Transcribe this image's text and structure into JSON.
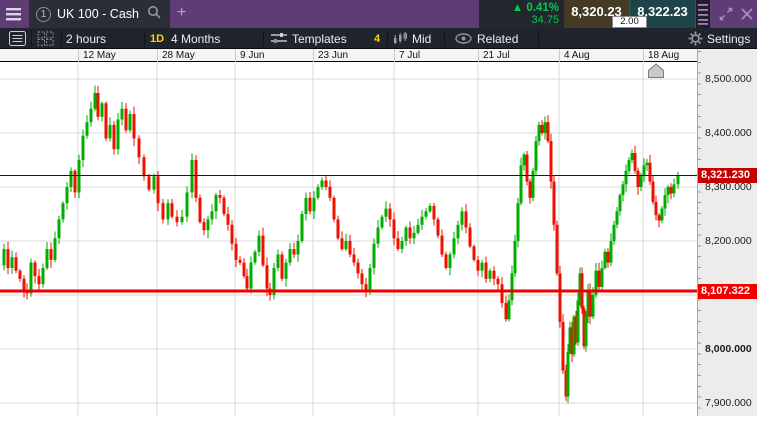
{
  "topbar": {
    "tab_badge": "1",
    "tab_title": "UK 100 - Cash",
    "add_tab": "+",
    "change": {
      "arrow": "▲",
      "percent": "0.41%",
      "points": "34.75",
      "color": "#00cb4e"
    },
    "sell_price": "8,320.23",
    "buy_price": "8,322.23",
    "spread": "2.00"
  },
  "toolbar": {
    "interval_label": "2 hours",
    "timeframe_badge": "1D",
    "period_label": "4 Months",
    "templates_label": "Templates",
    "templates_count": "4",
    "chart_type_label": "Mid",
    "related_label": "Related",
    "settings_label": "Settings",
    "accent_yellow": "#ffd400"
  },
  "chart_data": {
    "type": "candlestick",
    "title": "UK 100 - Cash, 2-hour candles over 4 months",
    "colors": {
      "up": "#00ae00",
      "down": "#ee1100",
      "grid": "#d8d8d8"
    },
    "x_axis": {
      "labels": [
        "12 May",
        "28 May",
        "9 Jun",
        "23 Jun",
        "7 Jul",
        "21 Jul",
        "4 Aug",
        "18 Aug"
      ],
      "tick_x": [
        78,
        157,
        235,
        313,
        394,
        478,
        559,
        643
      ]
    },
    "y_axis": {
      "min": 7880,
      "max": 8530,
      "labels": [
        {
          "text": "8,500.000",
          "value": 8500,
          "bold": false
        },
        {
          "text": "8,400.000",
          "value": 8400,
          "bold": false
        },
        {
          "text": "8,300.000",
          "value": 8300,
          "bold": false
        },
        {
          "text": "8,200.000",
          "value": 8200,
          "bold": false
        },
        {
          "text": "8,100.000",
          "value": 8100,
          "bold": false
        },
        {
          "text": "8,000.000",
          "value": 8000,
          "bold": true
        },
        {
          "text": "7,900.000",
          "value": 7900,
          "bold": false
        }
      ]
    },
    "levels": [
      {
        "name": "current-price",
        "value": 8321.23,
        "label": "8,321.230",
        "line_color": "#1a1a1a",
        "line_width": 1,
        "tag_color": "#c40000"
      },
      {
        "name": "alert-line",
        "value": 8107.322,
        "label": "8,107.322",
        "line_color": "#ee0000",
        "line_width": 3,
        "tag_color": "#f20000"
      }
    ],
    "price_path": [
      [
        0,
        8155
      ],
      [
        4,
        8185
      ],
      [
        8,
        8150
      ],
      [
        12,
        8170
      ],
      [
        16,
        8145
      ],
      [
        20,
        8130
      ],
      [
        24,
        8110
      ],
      [
        27,
        8103
      ],
      [
        31,
        8160
      ],
      [
        35,
        8135
      ],
      [
        39,
        8120
      ],
      [
        43,
        8150
      ],
      [
        47,
        8185
      ],
      [
        51,
        8165
      ],
      [
        55,
        8205
      ],
      [
        59,
        8240
      ],
      [
        63,
        8270
      ],
      [
        67,
        8300
      ],
      [
        71,
        8330
      ],
      [
        75,
        8290
      ],
      [
        79,
        8350
      ],
      [
        83,
        8395
      ],
      [
        87,
        8420
      ],
      [
        91,
        8445
      ],
      [
        95,
        8474
      ],
      [
        98,
        8430
      ],
      [
        102,
        8455
      ],
      [
        106,
        8390
      ],
      [
        110,
        8415
      ],
      [
        114,
        8370
      ],
      [
        118,
        8425
      ],
      [
        122,
        8445
      ],
      [
        126,
        8405
      ],
      [
        130,
        8435
      ],
      [
        134,
        8390
      ],
      [
        139,
        8355
      ],
      [
        144,
        8320
      ],
      [
        149,
        8295
      ],
      [
        154,
        8320
      ],
      [
        158,
        8270
      ],
      [
        163,
        8240
      ],
      [
        168,
        8270
      ],
      [
        172,
        8245
      ],
      [
        177,
        8235
      ],
      [
        182,
        8245
      ],
      [
        187,
        8290
      ],
      [
        192,
        8350
      ],
      [
        196,
        8280
      ],
      [
        200,
        8235
      ],
      [
        204,
        8220
      ],
      [
        208,
        8240
      ],
      [
        212,
        8255
      ],
      [
        216,
        8285
      ],
      [
        220,
        8280
      ],
      [
        224,
        8250
      ],
      [
        228,
        8230
      ],
      [
        232,
        8195
      ],
      [
        236,
        8165
      ],
      [
        240,
        8160
      ],
      [
        244,
        8135
      ],
      [
        247,
        8112
      ],
      [
        251,
        8160
      ],
      [
        255,
        8180
      ],
      [
        259,
        8210
      ],
      [
        263,
        8155
      ],
      [
        267,
        8112
      ],
      [
        270,
        8100
      ],
      [
        274,
        8150
      ],
      [
        278,
        8175
      ],
      [
        282,
        8130
      ],
      [
        286,
        8160
      ],
      [
        290,
        8185
      ],
      [
        294,
        8175
      ],
      [
        298,
        8200
      ],
      [
        302,
        8250
      ],
      [
        306,
        8280
      ],
      [
        310,
        8255
      ],
      [
        314,
        8280
      ],
      [
        318,
        8300
      ],
      [
        322,
        8312
      ],
      [
        326,
        8300
      ],
      [
        330,
        8280
      ],
      [
        334,
        8240
      ],
      [
        338,
        8205
      ],
      [
        342,
        8185
      ],
      [
        346,
        8200
      ],
      [
        350,
        8175
      ],
      [
        354,
        8160
      ],
      [
        358,
        8140
      ],
      [
        362,
        8120
      ],
      [
        366,
        8107
      ],
      [
        370,
        8150
      ],
      [
        374,
        8195
      ],
      [
        378,
        8225
      ],
      [
        382,
        8245
      ],
      [
        386,
        8260
      ],
      [
        390,
        8240
      ],
      [
        394,
        8205
      ],
      [
        398,
        8185
      ],
      [
        402,
        8200
      ],
      [
        406,
        8225
      ],
      [
        410,
        8205
      ],
      [
        414,
        8215
      ],
      [
        418,
        8230
      ],
      [
        422,
        8245
      ],
      [
        426,
        8255
      ],
      [
        430,
        8265
      ],
      [
        434,
        8240
      ],
      [
        438,
        8210
      ],
      [
        442,
        8175
      ],
      [
        446,
        8150
      ],
      [
        450,
        8175
      ],
      [
        454,
        8205
      ],
      [
        458,
        8230
      ],
      [
        462,
        8255
      ],
      [
        466,
        8225
      ],
      [
        470,
        8190
      ],
      [
        474,
        8165
      ],
      [
        478,
        8145
      ],
      [
        482,
        8160
      ],
      [
        486,
        8130
      ],
      [
        490,
        8145
      ],
      [
        494,
        8130
      ],
      [
        498,
        8120
      ],
      [
        502,
        8085
      ],
      [
        506,
        8055
      ],
      [
        509,
        8090
      ],
      [
        512,
        8140
      ],
      [
        515,
        8200
      ],
      [
        518,
        8270
      ],
      [
        521,
        8340
      ],
      [
        524,
        8360
      ],
      [
        527,
        8310
      ],
      [
        530,
        8280
      ],
      [
        533,
        8330
      ],
      [
        536,
        8385
      ],
      [
        539,
        8415
      ],
      [
        542,
        8400
      ],
      [
        545,
        8420
      ],
      [
        548,
        8385
      ],
      [
        551,
        8310
      ],
      [
        554,
        8230
      ],
      [
        557,
        8140
      ],
      [
        560,
        8050
      ],
      [
        563,
        7960
      ],
      [
        566,
        7912
      ],
      [
        568,
        7995
      ],
      [
        570,
        8040
      ],
      [
        572,
        7990
      ],
      [
        574,
        8060
      ],
      [
        576,
        8012
      ],
      [
        578,
        8090
      ],
      [
        580,
        8140
      ],
      [
        582,
        8075
      ],
      [
        584,
        8005
      ],
      [
        586,
        8060
      ],
      [
        588,
        8110
      ],
      [
        590,
        8060
      ],
      [
        593,
        8100
      ],
      [
        596,
        8145
      ],
      [
        599,
        8115
      ],
      [
        602,
        8150
      ],
      [
        605,
        8180
      ],
      [
        608,
        8160
      ],
      [
        611,
        8200
      ],
      [
        614,
        8230
      ],
      [
        617,
        8255
      ],
      [
        620,
        8285
      ],
      [
        623,
        8305
      ],
      [
        626,
        8330
      ],
      [
        629,
        8350
      ],
      [
        632,
        8363
      ],
      [
        635,
        8330
      ],
      [
        638,
        8300
      ],
      [
        641,
        8320
      ],
      [
        644,
        8340
      ],
      [
        647,
        8345
      ],
      [
        650,
        8310
      ],
      [
        653,
        8272
      ],
      [
        656,
        8248
      ],
      [
        659,
        8238
      ],
      [
        662,
        8260
      ],
      [
        665,
        8285
      ],
      [
        668,
        8300
      ],
      [
        671,
        8288
      ],
      [
        674,
        8305
      ],
      [
        678,
        8321
      ]
    ]
  }
}
